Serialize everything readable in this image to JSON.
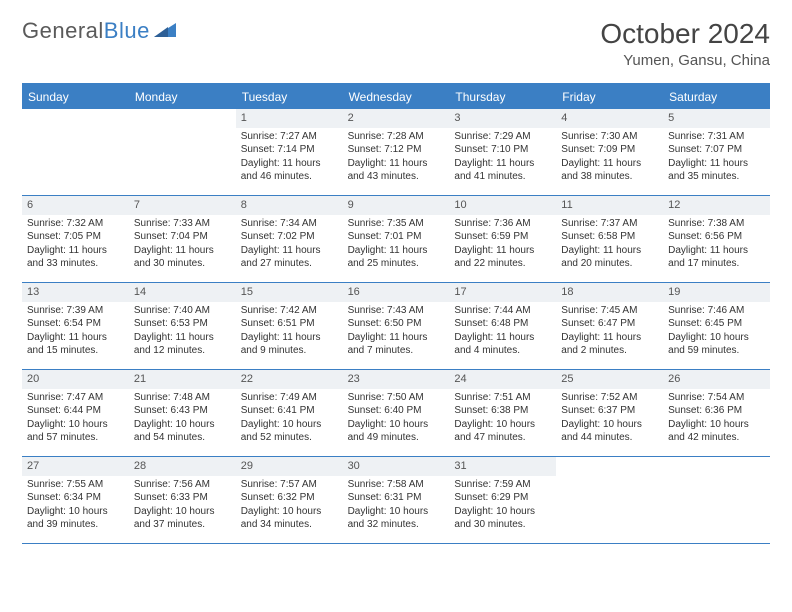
{
  "logo": {
    "text1": "General",
    "text2": "Blue"
  },
  "title": "October 2024",
  "location": "Yumen, Gansu, China",
  "colors": {
    "accent": "#3b7fc4",
    "dayHeaderBg": "#eef1f4",
    "text": "#333333",
    "background": "#ffffff"
  },
  "typography": {
    "title_fontsize": 28,
    "location_fontsize": 15,
    "weekday_fontsize": 12,
    "daynum_fontsize": 11,
    "body_fontsize": 10
  },
  "weekdays": [
    "Sunday",
    "Monday",
    "Tuesday",
    "Wednesday",
    "Thursday",
    "Friday",
    "Saturday"
  ],
  "weeks": [
    [
      null,
      null,
      {
        "n": "1",
        "sunrise": "7:27 AM",
        "sunset": "7:14 PM",
        "daylight": "11 hours and 46 minutes."
      },
      {
        "n": "2",
        "sunrise": "7:28 AM",
        "sunset": "7:12 PM",
        "daylight": "11 hours and 43 minutes."
      },
      {
        "n": "3",
        "sunrise": "7:29 AM",
        "sunset": "7:10 PM",
        "daylight": "11 hours and 41 minutes."
      },
      {
        "n": "4",
        "sunrise": "7:30 AM",
        "sunset": "7:09 PM",
        "daylight": "11 hours and 38 minutes."
      },
      {
        "n": "5",
        "sunrise": "7:31 AM",
        "sunset": "7:07 PM",
        "daylight": "11 hours and 35 minutes."
      }
    ],
    [
      {
        "n": "6",
        "sunrise": "7:32 AM",
        "sunset": "7:05 PM",
        "daylight": "11 hours and 33 minutes."
      },
      {
        "n": "7",
        "sunrise": "7:33 AM",
        "sunset": "7:04 PM",
        "daylight": "11 hours and 30 minutes."
      },
      {
        "n": "8",
        "sunrise": "7:34 AM",
        "sunset": "7:02 PM",
        "daylight": "11 hours and 27 minutes."
      },
      {
        "n": "9",
        "sunrise": "7:35 AM",
        "sunset": "7:01 PM",
        "daylight": "11 hours and 25 minutes."
      },
      {
        "n": "10",
        "sunrise": "7:36 AM",
        "sunset": "6:59 PM",
        "daylight": "11 hours and 22 minutes."
      },
      {
        "n": "11",
        "sunrise": "7:37 AM",
        "sunset": "6:58 PM",
        "daylight": "11 hours and 20 minutes."
      },
      {
        "n": "12",
        "sunrise": "7:38 AM",
        "sunset": "6:56 PM",
        "daylight": "11 hours and 17 minutes."
      }
    ],
    [
      {
        "n": "13",
        "sunrise": "7:39 AM",
        "sunset": "6:54 PM",
        "daylight": "11 hours and 15 minutes."
      },
      {
        "n": "14",
        "sunrise": "7:40 AM",
        "sunset": "6:53 PM",
        "daylight": "11 hours and 12 minutes."
      },
      {
        "n": "15",
        "sunrise": "7:42 AM",
        "sunset": "6:51 PM",
        "daylight": "11 hours and 9 minutes."
      },
      {
        "n": "16",
        "sunrise": "7:43 AM",
        "sunset": "6:50 PM",
        "daylight": "11 hours and 7 minutes."
      },
      {
        "n": "17",
        "sunrise": "7:44 AM",
        "sunset": "6:48 PM",
        "daylight": "11 hours and 4 minutes."
      },
      {
        "n": "18",
        "sunrise": "7:45 AM",
        "sunset": "6:47 PM",
        "daylight": "11 hours and 2 minutes."
      },
      {
        "n": "19",
        "sunrise": "7:46 AM",
        "sunset": "6:45 PM",
        "daylight": "10 hours and 59 minutes."
      }
    ],
    [
      {
        "n": "20",
        "sunrise": "7:47 AM",
        "sunset": "6:44 PM",
        "daylight": "10 hours and 57 minutes."
      },
      {
        "n": "21",
        "sunrise": "7:48 AM",
        "sunset": "6:43 PM",
        "daylight": "10 hours and 54 minutes."
      },
      {
        "n": "22",
        "sunrise": "7:49 AM",
        "sunset": "6:41 PM",
        "daylight": "10 hours and 52 minutes."
      },
      {
        "n": "23",
        "sunrise": "7:50 AM",
        "sunset": "6:40 PM",
        "daylight": "10 hours and 49 minutes."
      },
      {
        "n": "24",
        "sunrise": "7:51 AM",
        "sunset": "6:38 PM",
        "daylight": "10 hours and 47 minutes."
      },
      {
        "n": "25",
        "sunrise": "7:52 AM",
        "sunset": "6:37 PM",
        "daylight": "10 hours and 44 minutes."
      },
      {
        "n": "26",
        "sunrise": "7:54 AM",
        "sunset": "6:36 PM",
        "daylight": "10 hours and 42 minutes."
      }
    ],
    [
      {
        "n": "27",
        "sunrise": "7:55 AM",
        "sunset": "6:34 PM",
        "daylight": "10 hours and 39 minutes."
      },
      {
        "n": "28",
        "sunrise": "7:56 AM",
        "sunset": "6:33 PM",
        "daylight": "10 hours and 37 minutes."
      },
      {
        "n": "29",
        "sunrise": "7:57 AM",
        "sunset": "6:32 PM",
        "daylight": "10 hours and 34 minutes."
      },
      {
        "n": "30",
        "sunrise": "7:58 AM",
        "sunset": "6:31 PM",
        "daylight": "10 hours and 32 minutes."
      },
      {
        "n": "31",
        "sunrise": "7:59 AM",
        "sunset": "6:29 PM",
        "daylight": "10 hours and 30 minutes."
      },
      null,
      null
    ]
  ],
  "labels": {
    "sunrise": "Sunrise:",
    "sunset": "Sunset:",
    "daylight": "Daylight:"
  }
}
